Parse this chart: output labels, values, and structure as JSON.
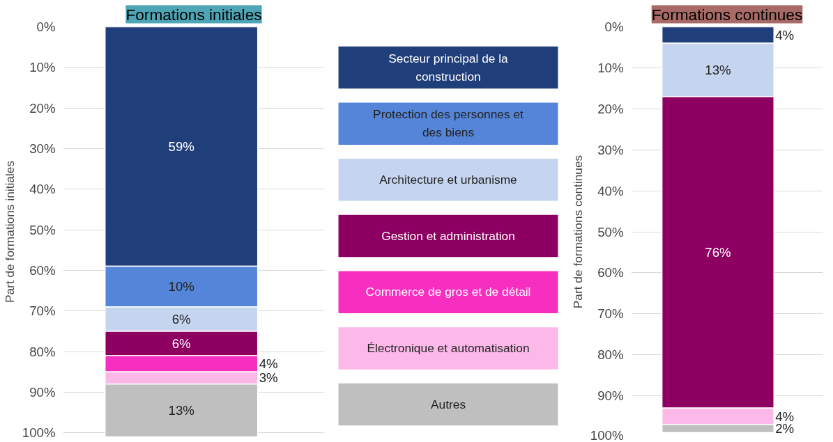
{
  "chart_data": [
    {
      "type": "bar",
      "stacked": true,
      "title": "Formations initiales",
      "ylabel": "Part de formations initiales",
      "categories": [
        null
      ],
      "ylim": [
        101,
        0
      ],
      "yticks": [
        {
          "value": 0,
          "label": "0%"
        },
        {
          "value": 10,
          "label": "10%"
        },
        {
          "value": 20,
          "label": "20%"
        },
        {
          "value": 30,
          "label": "30%"
        },
        {
          "value": 40,
          "label": "40%"
        },
        {
          "value": 50,
          "label": "50%"
        },
        {
          "value": 60,
          "label": "60%"
        },
        {
          "value": 70,
          "label": "70%"
        },
        {
          "value": 80,
          "label": "80%"
        },
        {
          "value": 90,
          "label": "90%"
        },
        {
          "value": 100,
          "label": "100%"
        }
      ],
      "grid": "y",
      "legend": "right",
      "series": [
        {
          "name": "Secteur principal de la construction",
          "color": "#203f7a",
          "values": [
            59
          ],
          "value_labels": [
            "59%"
          ]
        },
        {
          "name": "Protection des personnes et des biens",
          "color": "#5585d8",
          "values": [
            10
          ],
          "value_labels": [
            "10%"
          ]
        },
        {
          "name": "Architecture et urbanisme",
          "color": "#c5d5f0",
          "values": [
            6
          ],
          "value_labels": [
            "6%"
          ]
        },
        {
          "name": "Gestion et administration",
          "color": "#8d0062",
          "values": [
            6
          ],
          "value_labels": [
            "6%"
          ]
        },
        {
          "name": "Commerce de gros et de détail",
          "color": "#f72fc0",
          "values": [
            4
          ],
          "value_labels": [
            "4%"
          ]
        },
        {
          "name": "Électronique et automatisation",
          "color": "#fbb8e8",
          "values": [
            3
          ],
          "value_labels": [
            "3%"
          ]
        },
        {
          "name": "Autres",
          "color": "#bfbfbf",
          "values": [
            13
          ],
          "value_labels": [
            "13%"
          ]
        }
      ]
    },
    {
      "type": "bar",
      "stacked": true,
      "title": "Formations continues",
      "ylabel": "Part de formations continues",
      "categories": [
        null
      ],
      "ylim": [
        100,
        0
      ],
      "yticks": [
        {
          "value": 0,
          "label": "0%"
        },
        {
          "value": 10,
          "label": "10%"
        },
        {
          "value": 20,
          "label": "20%"
        },
        {
          "value": 30,
          "label": "30%"
        },
        {
          "value": 40,
          "label": "40%"
        },
        {
          "value": 50,
          "label": "50%"
        },
        {
          "value": 60,
          "label": "60%"
        },
        {
          "value": 70,
          "label": "70%"
        },
        {
          "value": 80,
          "label": "80%"
        },
        {
          "value": 90,
          "label": "90%"
        },
        {
          "value": 100,
          "label": "100%"
        }
      ],
      "grid": "y",
      "series": [
        {
          "color": "#203f7a",
          "values": [
            4
          ],
          "value_labels": [
            "4%"
          ]
        },
        {
          "color": "#c5d5f0",
          "values": [
            13
          ],
          "value_labels": [
            "13%"
          ]
        },
        {
          "color": "#8d0062",
          "values": [
            76
          ],
          "value_labels": [
            "76%"
          ]
        },
        {
          "color": "#fbb8e8",
          "values": [
            4
          ],
          "value_labels": [
            "4%"
          ]
        },
        {
          "color": "#bfbfbf",
          "values": [
            2
          ],
          "value_labels": [
            "2%"
          ]
        }
      ]
    }
  ]
}
